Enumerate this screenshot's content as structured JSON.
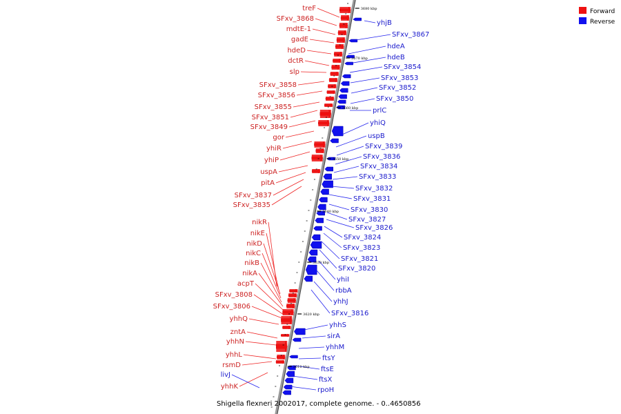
{
  "caption": "Shigella flexneri 2002017, complete genome. - 0..4650856",
  "legend": [
    {
      "label": "Forward",
      "color": "#ee1111"
    },
    {
      "label": "Reverse",
      "color": "#1111ee"
    }
  ],
  "ticks": [
    "3680 kbp",
    "3670 kbp",
    "3660 kbp",
    "3650 kbp",
    "3640 kbp",
    "3630 kbp",
    "3620 kbp",
    "3610 kbp"
  ],
  "forward_genes": [
    "treF",
    "SFxv_3868",
    "mdtE-1",
    "gadE",
    "hdeD",
    "dctR",
    "slp",
    "SFxv_3858",
    "SFxv_3856",
    "SFxv_3855",
    "SFxv_3851",
    "SFxv_3849",
    "gor",
    "yhiR",
    "yhiP",
    "uspA",
    "pitA",
    "SFxv_3837",
    "SFxv_3835",
    "nikR",
    "nikE",
    "nikD",
    "nikC",
    "nikB",
    "nikA",
    "acpT",
    "SFxv_3808",
    "SFxv_3806",
    "yhhQ",
    "zntA",
    "yhhN",
    "yhhL",
    "rsmD",
    "yhhK"
  ],
  "reverse_genes": [
    "yhjB",
    "SFxv_3867",
    "hdeA",
    "hdeB",
    "SFxv_3854",
    "SFxv_3853",
    "SFxv_3852",
    "SFxv_3850",
    "prlC",
    "yhiQ",
    "uspB",
    "SFxv_3839",
    "SFxv_3836",
    "SFxv_3834",
    "SFxv_3833",
    "SFxv_3832",
    "SFxv_3831",
    "SFxv_3830",
    "SFxv_3827",
    "SFxv_3826",
    "SFxv_3824",
    "SFxv_3823",
    "SFxv_3821",
    "SFxv_3820",
    "yhiI",
    "rbbA",
    "yhhJ",
    "SFxv_3816",
    "yhhS",
    "sirA",
    "yhhM",
    "ftsY",
    "ftsE",
    "ftsX",
    "rpoH",
    "livJ"
  ]
}
